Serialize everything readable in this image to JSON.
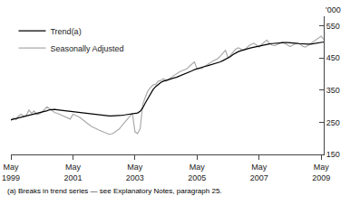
{
  "chart_data": {
    "type": "line",
    "ylabel": "'000",
    "annotations": [
      "(a) Breaks in trend series — see Explanatory Notes, paragraph 25."
    ],
    "categories": [
      "May\n1999",
      null,
      null,
      null,
      null,
      null,
      null,
      null,
      null,
      null,
      null,
      null,
      null,
      null,
      null,
      null,
      null,
      null,
      null,
      null,
      null,
      null,
      null,
      null,
      "May\n2001",
      null,
      null,
      null,
      null,
      null,
      null,
      null,
      null,
      null,
      null,
      null,
      null,
      null,
      null,
      null,
      null,
      null,
      null,
      null,
      null,
      null,
      null,
      null,
      "May\n2003",
      null,
      null,
      null,
      null,
      null,
      null,
      null,
      null,
      null,
      null,
      null,
      null,
      null,
      null,
      null,
      null,
      null,
      null,
      null,
      null,
      null,
      null,
      null,
      "May\n2005",
      null,
      null,
      null,
      null,
      null,
      null,
      null,
      null,
      null,
      null,
      null,
      null,
      null,
      null,
      null,
      null,
      null,
      null,
      null,
      null,
      null,
      null,
      null,
      "May\n2007",
      null,
      null,
      null,
      null,
      null,
      null,
      null,
      null,
      null,
      null,
      null,
      null,
      null,
      null,
      null,
      null,
      null,
      null,
      null,
      null,
      null,
      null,
      null,
      "May\n2009",
      null
    ],
    "series": [
      {
        "name": "Seasonally Adjusted",
        "color": "#aaaaaa",
        "values": [
          255,
          263,
          258,
          270,
          275,
          268,
          272,
          288,
          278,
          285,
          274,
          276,
          282,
          290,
          298,
          292,
          285,
          280,
          278,
          274,
          270,
          266,
          263,
          260,
          275,
          272,
          268,
          263,
          256,
          250,
          244,
          238,
          233,
          230,
          226,
          222,
          219,
          216,
          213,
          214,
          218,
          224,
          230,
          240,
          250,
          260,
          270,
          278,
          220,
          215,
          230,
          305,
          328,
          348,
          358,
          366,
          368,
          378,
          380,
          386,
          378,
          382,
          390,
          396,
          402,
          406,
          410,
          413,
          416,
          424,
          430,
          438,
          416,
          416,
          418,
          424,
          430,
          436,
          440,
          444,
          448,
          456,
          465,
          474,
          450,
          460,
          470,
          478,
          482,
          478,
          474,
          480,
          488,
          493,
          496,
          490,
          484,
          492,
          500,
          506,
          496,
          490,
          488,
          493,
          496,
          500,
          496,
          490,
          486,
          490,
          494,
          498,
          492,
          486,
          484,
          490,
          496,
          500,
          506,
          512,
          518,
          508
        ]
      },
      {
        "name": "Trend(a)",
        "color": "#000000",
        "values": [
          258,
          260,
          261,
          263,
          265,
          267,
          269,
          271,
          273,
          275,
          277,
          278,
          280,
          283,
          286,
          289,
          290,
          290,
          289,
          288,
          287,
          286,
          285,
          284,
          283,
          282,
          281,
          280,
          279,
          278,
          277,
          276,
          275,
          274,
          273,
          272,
          271,
          270,
          270,
          270,
          270,
          270,
          271,
          272,
          273,
          274,
          275,
          276,
          277,
          279,
          284,
          295,
          310,
          325,
          340,
          352,
          361,
          368,
          374,
          378,
          381,
          383,
          385,
          388,
          390,
          393,
          396,
          399,
          402,
          406,
          410,
          414,
          417,
          420,
          422,
          424,
          426,
          428,
          430,
          432,
          435,
          438,
          442,
          446,
          450,
          455,
          461,
          466,
          470,
          473,
          476,
          478,
          480,
          482,
          484,
          486,
          488,
          490,
          492,
          493,
          494,
          495,
          496,
          497,
          498,
          498,
          498,
          498,
          498,
          497,
          496,
          495,
          494,
          493,
          493,
          493,
          493,
          494,
          495,
          496,
          498,
          500
        ]
      }
    ],
    "ylim": [
      150,
      580
    ],
    "yticks": [
      150,
      250,
      350,
      450,
      550
    ],
    "grid": false,
    "legend": "upper left"
  }
}
